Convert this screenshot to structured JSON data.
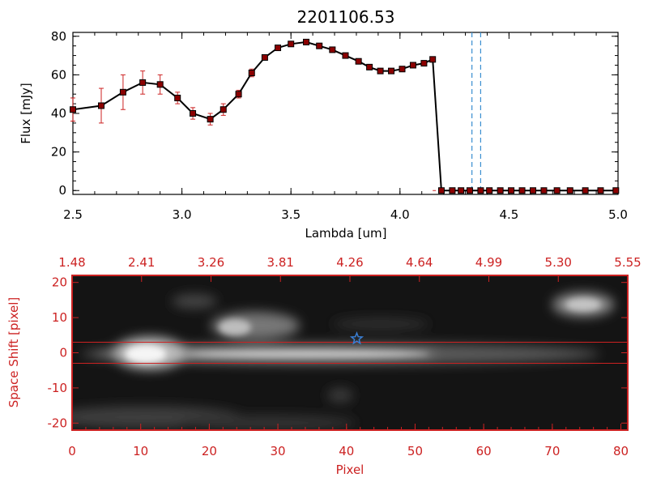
{
  "chart_data": [
    {
      "type": "line",
      "title": "2201106.53",
      "xlabel": "Lambda [um]",
      "ylabel": "Flux [mJy]",
      "xlim": [
        2.5,
        5.0
      ],
      "ylim": [
        -2,
        82
      ],
      "x_ticks": [
        "2.5",
        "3.0",
        "3.5",
        "4.0",
        "4.5",
        "5.0"
      ],
      "x_tick_values": [
        2.5,
        3.0,
        3.5,
        4.0,
        4.5,
        5.0
      ],
      "y_ticks": [
        "0",
        "20",
        "40",
        "60",
        "80"
      ],
      "y_tick_values": [
        0,
        20,
        40,
        60,
        80
      ],
      "line_color": "#000000",
      "marker_color": "#8b0000",
      "errorbar_color": "#cc2222",
      "dashed_lines_x": [
        4.33,
        4.37
      ],
      "dashed_line_color": "#3a8fd0",
      "series": [
        {
          "name": "flux",
          "x": [
            2.5,
            2.63,
            2.73,
            2.82,
            2.9,
            2.98,
            3.05,
            3.13,
            3.19,
            3.26,
            3.32,
            3.38,
            3.44,
            3.5,
            3.57,
            3.63,
            3.69,
            3.75,
            3.81,
            3.86,
            3.91,
            3.96,
            4.01,
            4.06,
            4.11,
            4.15,
            4.19,
            4.24,
            4.28,
            4.32,
            4.37,
            4.41,
            4.46,
            4.51,
            4.56,
            4.61,
            4.66,
            4.72,
            4.78,
            4.85,
            4.92,
            4.99
          ],
          "y": [
            42,
            44,
            51,
            56,
            55,
            48,
            40,
            37,
            42,
            50,
            61,
            69,
            74,
            76,
            77,
            75,
            73,
            70,
            67,
            64,
            62,
            62,
            63,
            65,
            66,
            68,
            0,
            0,
            0,
            0,
            0,
            0,
            0,
            0,
            0,
            0,
            0,
            0,
            0,
            0,
            0,
            0
          ],
          "err": [
            6,
            9,
            9,
            6,
            5,
            3,
            3,
            3,
            3,
            2,
            2,
            1,
            1,
            1,
            1,
            1,
            1,
            1,
            1,
            1,
            1,
            1,
            1,
            1,
            1,
            1,
            0,
            0,
            0,
            0,
            0,
            0,
            0,
            0,
            0,
            0,
            0,
            0,
            0,
            0,
            0,
            0
          ]
        }
      ]
    },
    {
      "type": "heatmap",
      "xlabel": "Pixel",
      "ylabel": "Space Shift [pixel]",
      "xlim": [
        0,
        81
      ],
      "ylim": [
        -22,
        22
      ],
      "x_ticks": [
        "0",
        "10",
        "20",
        "30",
        "40",
        "50",
        "60",
        "70",
        "80"
      ],
      "x_tick_values": [
        0,
        10,
        20,
        30,
        40,
        50,
        60,
        70,
        80
      ],
      "y_ticks": [
        "-20",
        "-10",
        "0",
        "10",
        "20"
      ],
      "y_tick_values": [
        -20,
        -10,
        0,
        10,
        20
      ],
      "top_axis_labels": [
        "1.48",
        "2.41",
        "3.26",
        "3.81",
        "4.26",
        "4.64",
        "4.99",
        "5.30",
        "5.55"
      ],
      "axis_color": "#cc2222",
      "aperture_rows": [
        3,
        -3
      ],
      "marker": {
        "x": 41.5,
        "y": 4,
        "symbol": "star",
        "color": "#3a7fd5"
      }
    }
  ]
}
